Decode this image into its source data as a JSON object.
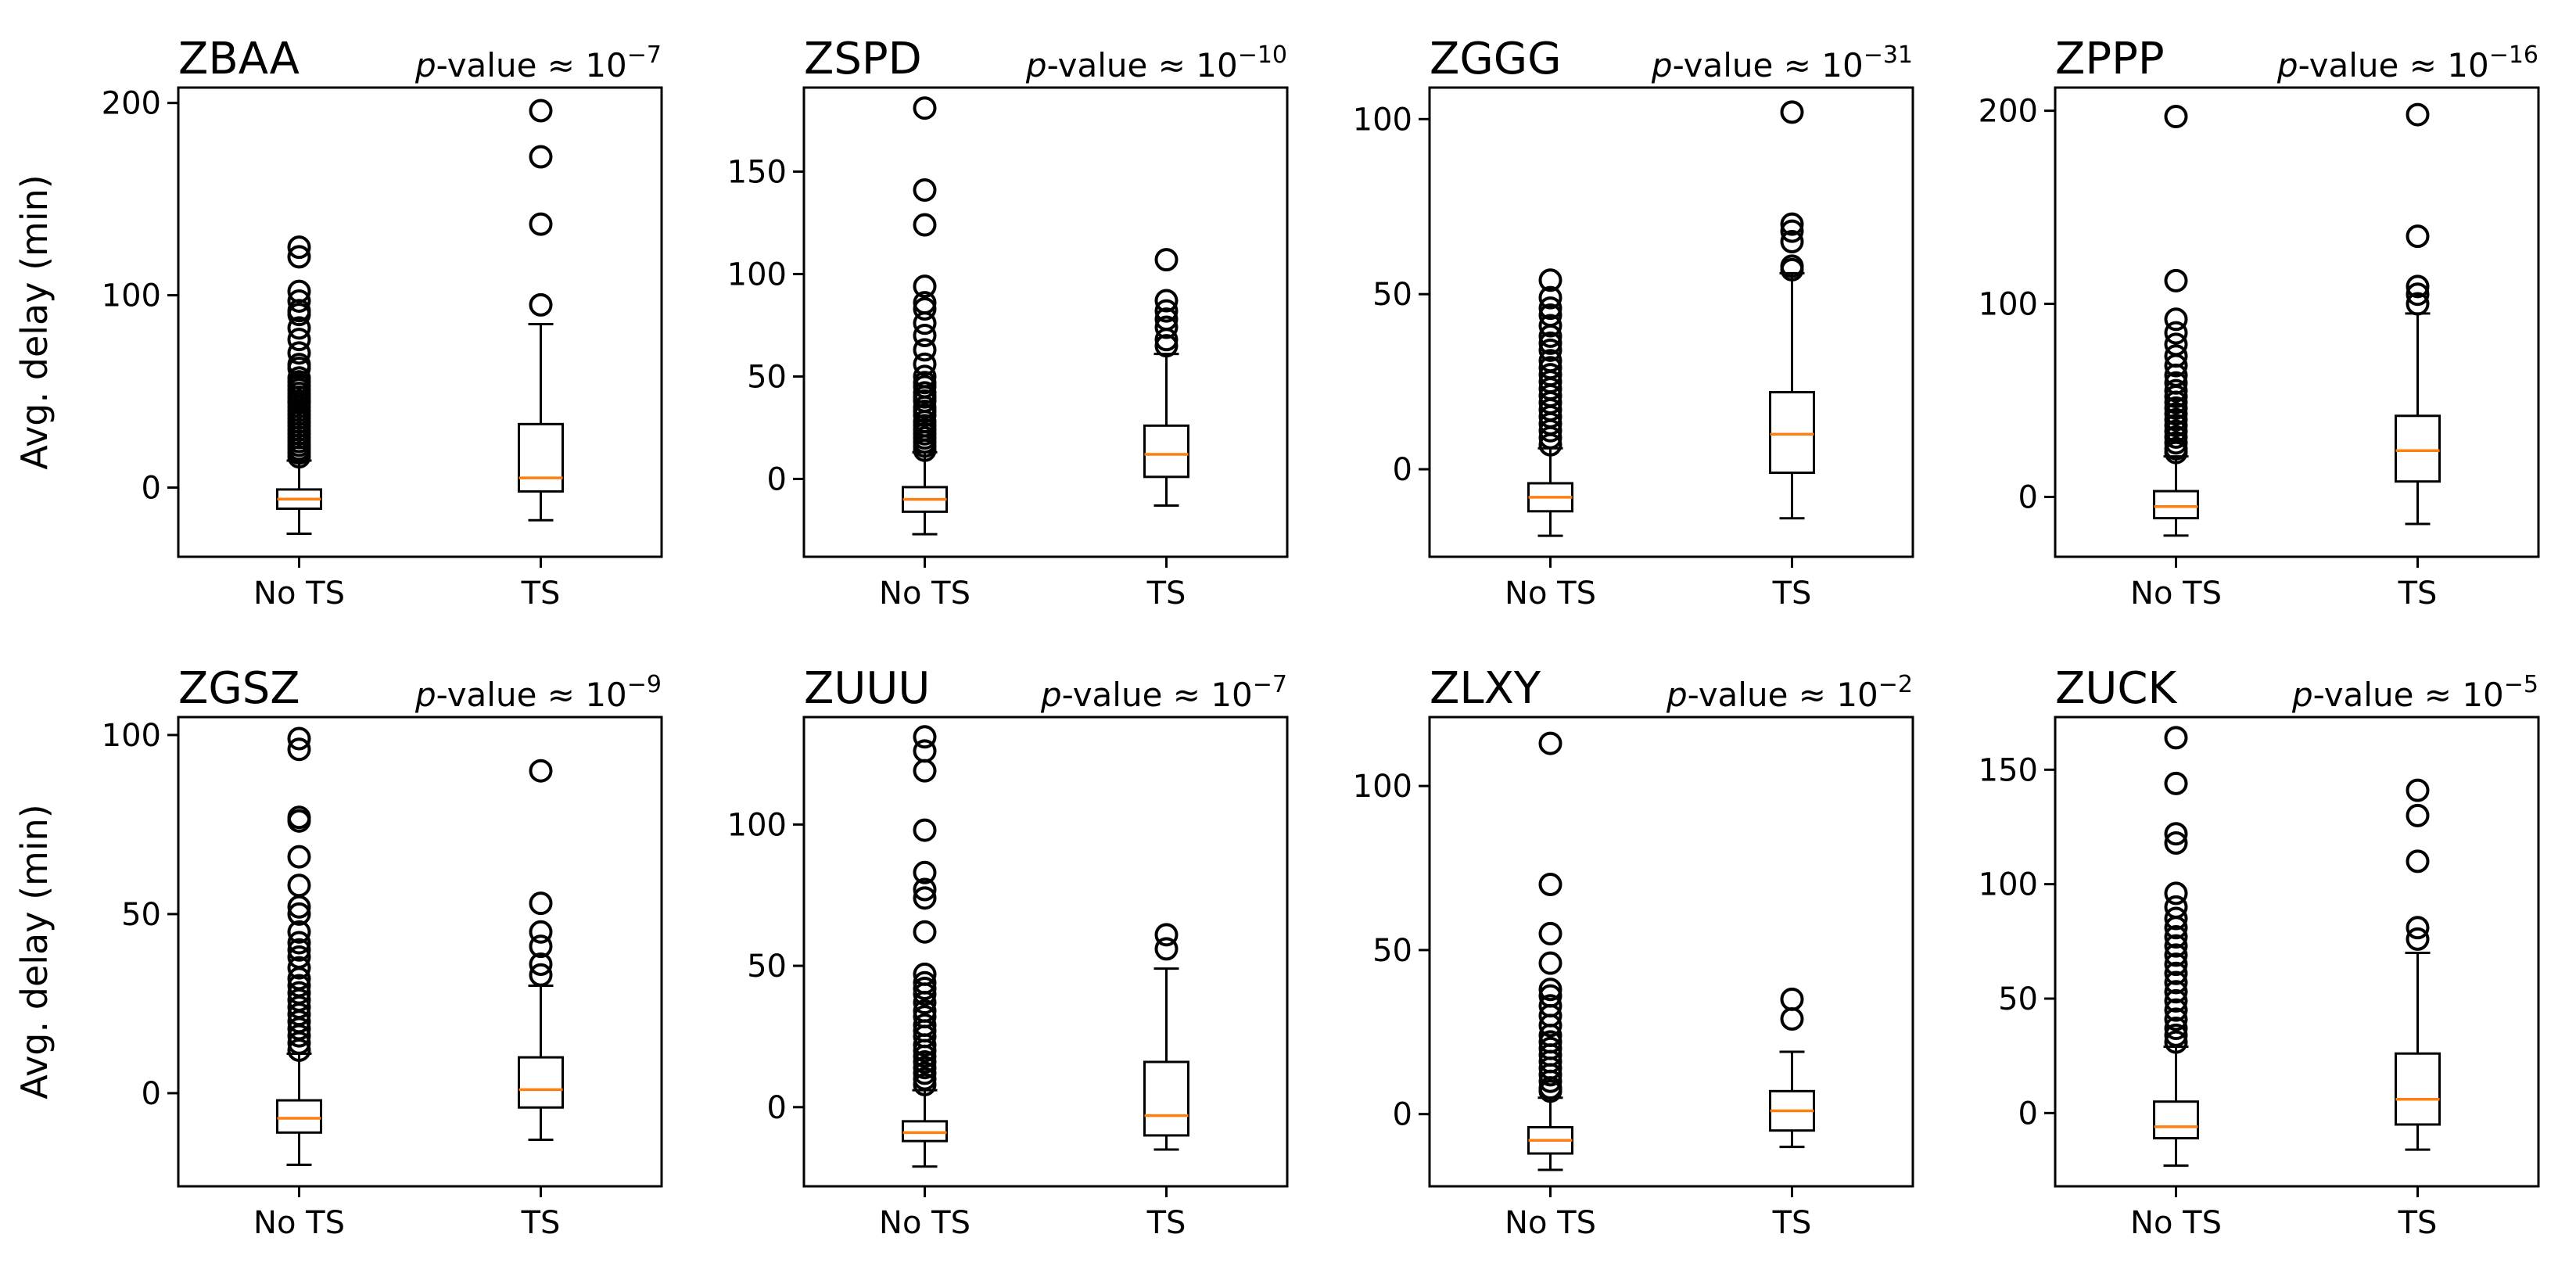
{
  "chart_data": [
    {
      "type": "boxplot",
      "title": "ZBAA",
      "pvalue_prefix": "p",
      "pvalue_text": "-value",
      "approx": "≈",
      "pvalue_base": "10",
      "pvalue_exp": "−7",
      "ylabel": "Avg. delay (min)",
      "ylim": [
        -36,
        208
      ],
      "yticks": [
        "0",
        "100",
        "200"
      ],
      "ytick_values": [
        0,
        100,
        200
      ],
      "categories": [
        "No TS",
        "TS"
      ],
      "boxes": [
        {
          "whislo": -24,
          "q1": -11,
          "med": -6,
          "q3": -1,
          "whishi": 14,
          "fliers": [
            125,
            120,
            102,
            97,
            92,
            90,
            83,
            77,
            70,
            64,
            62,
            57,
            55,
            53,
            51,
            49,
            47,
            45,
            44,
            42,
            40,
            38,
            36,
            34,
            32,
            30,
            28,
            26,
            24,
            22,
            20,
            18,
            16
          ]
        },
        {
          "whislo": -17,
          "q1": -2,
          "med": 5,
          "q3": 33,
          "whishi": 85,
          "fliers": [
            196,
            172,
            137,
            95
          ]
        }
      ]
    },
    {
      "type": "boxplot",
      "title": "ZSPD",
      "pvalue_prefix": "p",
      "pvalue_text": "-value",
      "approx": "≈",
      "pvalue_base": "10",
      "pvalue_exp": "−10",
      "ylabel": "",
      "ylim": [
        -38,
        191
      ],
      "yticks": [
        "0",
        "50",
        "100",
        "150"
      ],
      "ytick_values": [
        0,
        50,
        100,
        150
      ],
      "categories": [
        "No TS",
        "TS"
      ],
      "boxes": [
        {
          "whislo": -27,
          "q1": -16,
          "med": -10,
          "q3": -4,
          "whishi": 13,
          "fliers": [
            181,
            141,
            124,
            94,
            86,
            83,
            76,
            70,
            63,
            56,
            50,
            47,
            45,
            42,
            40,
            38,
            35,
            33,
            31,
            28,
            26,
            24,
            22,
            20,
            18,
            16,
            14
          ]
        },
        {
          "whislo": -13,
          "q1": 1,
          "med": 12,
          "q3": 26,
          "whishi": 61,
          "fliers": [
            107,
            87,
            82,
            78,
            74,
            68,
            65
          ]
        }
      ]
    },
    {
      "type": "boxplot",
      "title": "ZGGG",
      "pvalue_prefix": "p",
      "pvalue_text": "-value",
      "approx": "≈",
      "pvalue_base": "10",
      "pvalue_exp": "−31",
      "ylabel": "",
      "ylim": [
        -25,
        109
      ],
      "yticks": [
        "0",
        "50",
        "100"
      ],
      "ytick_values": [
        0,
        50,
        100
      ],
      "categories": [
        "No TS",
        "TS"
      ],
      "boxes": [
        {
          "whislo": -19,
          "q1": -12,
          "med": -8,
          "q3": -4,
          "whishi": 6,
          "fliers": [
            54,
            49,
            46,
            44,
            41,
            38,
            36,
            34,
            31,
            29,
            27,
            25,
            23,
            21,
            19,
            17,
            15,
            13,
            11,
            9,
            7
          ]
        },
        {
          "whislo": -14,
          "q1": -1,
          "med": 10,
          "q3": 22,
          "whishi": 56,
          "fliers": [
            102,
            70,
            68,
            65,
            58,
            57
          ]
        }
      ]
    },
    {
      "type": "boxplot",
      "title": "ZPPP",
      "pvalue_prefix": "p",
      "pvalue_text": "-value",
      "approx": "≈",
      "pvalue_base": "10",
      "pvalue_exp": "−16",
      "ylabel": "",
      "ylim": [
        -31,
        212
      ],
      "yticks": [
        "0",
        "100",
        "200"
      ],
      "ytick_values": [
        0,
        100,
        200
      ],
      "categories": [
        "No TS",
        "TS"
      ],
      "boxes": [
        {
          "whislo": -20,
          "q1": -11,
          "med": -5,
          "q3": 3,
          "whishi": 21,
          "fliers": [
            197,
            112,
            92,
            85,
            79,
            73,
            68,
            63,
            59,
            55,
            52,
            49,
            46,
            43,
            40,
            37,
            34,
            31,
            28,
            25,
            23
          ]
        },
        {
          "whislo": -14,
          "q1": 8,
          "med": 24,
          "q3": 42,
          "whishi": 95,
          "fliers": [
            198,
            135,
            109,
            105,
            100
          ]
        }
      ]
    },
    {
      "type": "boxplot",
      "title": "ZGSZ",
      "pvalue_prefix": "p",
      "pvalue_text": "-value",
      "approx": "≈",
      "pvalue_base": "10",
      "pvalue_exp": "−9",
      "ylabel": "Avg. delay (min)",
      "ylim": [
        -26,
        105
      ],
      "yticks": [
        "0",
        "50",
        "100"
      ],
      "ytick_values": [
        0,
        50,
        100
      ],
      "categories": [
        "No TS",
        "TS"
      ],
      "boxes": [
        {
          "whislo": -20,
          "q1": -11,
          "med": -7,
          "q3": -2,
          "whishi": 11,
          "fliers": [
            99,
            96,
            77,
            76,
            66,
            58,
            52,
            50,
            45,
            42,
            40,
            38,
            35,
            32,
            30,
            28,
            26,
            24,
            22,
            20,
            18,
            16,
            14,
            12
          ]
        },
        {
          "whislo": -13,
          "q1": -4,
          "med": 1,
          "q3": 10,
          "whishi": 30,
          "fliers": [
            90,
            53,
            45,
            41,
            36,
            33
          ]
        }
      ]
    },
    {
      "type": "boxplot",
      "title": "ZUUU",
      "pvalue_prefix": "p",
      "pvalue_text": "-value",
      "approx": "≈",
      "pvalue_base": "10",
      "pvalue_exp": "−7",
      "ylabel": "",
      "ylim": [
        -28,
        138
      ],
      "yticks": [
        "0",
        "50",
        "100"
      ],
      "ytick_values": [
        0,
        50,
        100
      ],
      "categories": [
        "No TS",
        "TS"
      ],
      "boxes": [
        {
          "whislo": -21,
          "q1": -12,
          "med": -9,
          "q3": -5,
          "whishi": 6,
          "fliers": [
            131,
            126,
            119,
            98,
            83,
            77,
            74,
            62,
            47,
            44,
            42,
            40,
            37,
            34,
            32,
            29,
            27,
            25,
            22,
            20,
            18,
            16,
            14,
            12,
            10,
            8
          ]
        },
        {
          "whislo": -15,
          "q1": -10,
          "med": -3,
          "q3": 16,
          "whishi": 49,
          "fliers": [
            61,
            56
          ]
        }
      ]
    },
    {
      "type": "boxplot",
      "title": "ZLXY",
      "pvalue_prefix": "p",
      "pvalue_text": "-value",
      "approx": "≈",
      "pvalue_base": "10",
      "pvalue_exp": "−2",
      "ylabel": "",
      "ylim": [
        -22,
        121
      ],
      "yticks": [
        "0",
        "50",
        "100"
      ],
      "ytick_values": [
        0,
        50,
        100
      ],
      "categories": [
        "No TS",
        "TS"
      ],
      "boxes": [
        {
          "whislo": -17,
          "q1": -12,
          "med": -8,
          "q3": -4,
          "whishi": 5,
          "fliers": [
            113,
            70,
            55,
            46,
            38,
            36,
            33,
            30,
            27,
            24,
            22,
            20,
            18,
            16,
            14,
            12,
            10,
            8,
            7
          ]
        },
        {
          "whislo": -10,
          "q1": -5,
          "med": 1,
          "q3": 7,
          "whishi": 19,
          "fliers": [
            35,
            29
          ]
        }
      ]
    },
    {
      "type": "boxplot",
      "title": "ZUCK",
      "pvalue_prefix": "p",
      "pvalue_text": "-value",
      "approx": "≈",
      "pvalue_base": "10",
      "pvalue_exp": "−5",
      "ylabel": "",
      "ylim": [
        -32,
        173
      ],
      "yticks": [
        "0",
        "50",
        "100",
        "150"
      ],
      "ytick_values": [
        0,
        50,
        100,
        150
      ],
      "categories": [
        "No TS",
        "TS"
      ],
      "boxes": [
        {
          "whislo": -23,
          "q1": -11,
          "med": -6,
          "q3": 5,
          "whishi": 29,
          "fliers": [
            164,
            144,
            122,
            118,
            96,
            90,
            85,
            81,
            77,
            73,
            69,
            65,
            61,
            57,
            53,
            49,
            45,
            41,
            37,
            34,
            31
          ]
        },
        {
          "whislo": -16,
          "q1": -5,
          "med": 6,
          "q3": 26,
          "whishi": 70,
          "fliers": [
            141,
            130,
            110,
            81,
            76
          ]
        }
      ]
    }
  ]
}
